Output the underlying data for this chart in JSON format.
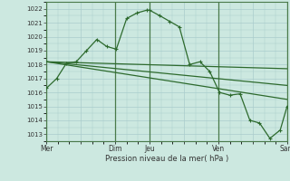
{
  "bg_color": "#cce8e0",
  "grid_color": "#aacccc",
  "line_color": "#2d6a2d",
  "vline_color": "#4a7a4a",
  "xlabel": "Pression niveau de la mer( hPa )",
  "ylim": [
    1012.5,
    1022.5
  ],
  "yticks": [
    1013,
    1014,
    1015,
    1016,
    1017,
    1018,
    1019,
    1020,
    1021,
    1022
  ],
  "xtick_labels": [
    "Mer",
    "",
    "Dim",
    "Jeu",
    "",
    "Ven",
    "",
    "Sam"
  ],
  "xtick_positions": [
    0,
    3,
    6,
    9,
    12,
    15,
    18,
    21
  ],
  "day_vlines": [
    0,
    6,
    9,
    15,
    21
  ],
  "xlim": [
    0,
    21
  ],
  "series0_x": [
    0,
    0.9,
    1.75,
    2.6,
    3.5,
    4.4,
    5.25,
    6.1,
    7.0,
    7.9,
    8.75,
    9.0,
    9.9,
    10.75,
    11.6,
    12.5,
    13.4,
    14.25,
    15.1,
    16.0,
    16.9,
    17.75,
    18.6,
    19.5,
    20.4,
    21.0
  ],
  "series0_y": [
    1016.3,
    1017.0,
    1018.1,
    1018.2,
    1019.0,
    1019.8,
    1019.3,
    1019.1,
    1021.3,
    1021.7,
    1021.9,
    1021.9,
    1021.5,
    1021.1,
    1020.7,
    1018.0,
    1018.2,
    1017.5,
    1016.0,
    1015.8,
    1015.9,
    1014.0,
    1013.8,
    1012.7,
    1013.3,
    1015.0
  ],
  "series1_x": [
    0,
    21
  ],
  "series1_y": [
    1018.2,
    1017.7
  ],
  "series2_x": [
    0,
    21
  ],
  "series2_y": [
    1018.2,
    1016.5
  ],
  "series3_x": [
    0,
    21
  ],
  "series3_y": [
    1018.2,
    1015.5
  ]
}
